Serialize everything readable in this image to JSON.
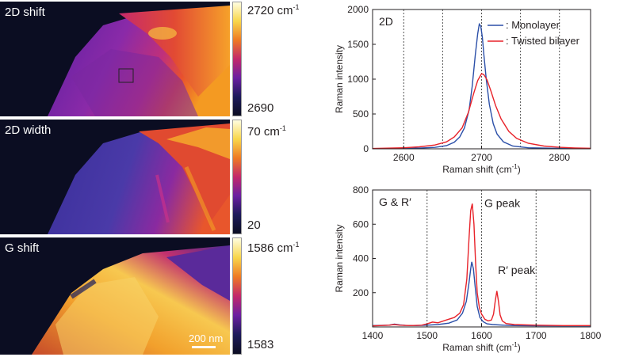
{
  "maps": [
    {
      "label": "2D shift",
      "cbar_max": "2720 cm",
      "cbar_max_sup": "-1",
      "cbar_min": "2690"
    },
    {
      "label": "2D width",
      "cbar_max": "70 cm",
      "cbar_max_sup": "-1",
      "cbar_min": "20"
    },
    {
      "label": "G shift",
      "cbar_max": "1586 cm",
      "cbar_max_sup": "-1",
      "cbar_min": "1583",
      "scalebar": "200 nm"
    }
  ],
  "colors": {
    "monolayer": "#2b4fa8",
    "twisted_bilayer": "#e8232a"
  },
  "chart_data": [
    {
      "type": "line",
      "panel_label": "2D",
      "xlabel": "Raman shift (cm",
      "xlabel_sup": "-1",
      "xlabel_close": ")",
      "ylabel": "Raman intensity",
      "xlim": [
        2560,
        2840
      ],
      "ylim": [
        0,
        2000
      ],
      "xticks": [
        2600,
        2700,
        2800
      ],
      "yticks": [
        0,
        500,
        1000,
        1500,
        2000
      ],
      "vlines": [
        2600,
        2650,
        2700,
        2750,
        2800
      ],
      "legend": [
        ": Monolayer",
        ": Twisted bilayer"
      ],
      "series": [
        {
          "name": "Monolayer",
          "x": [
            2560,
            2600,
            2620,
            2640,
            2655,
            2665,
            2672,
            2678,
            2684,
            2688,
            2692,
            2695,
            2697,
            2699,
            2701,
            2703,
            2706,
            2710,
            2715,
            2720,
            2728,
            2740,
            2760,
            2800,
            2840
          ],
          "y": [
            2,
            5,
            10,
            20,
            45,
            95,
            170,
            300,
            560,
            900,
            1350,
            1650,
            1790,
            1760,
            1600,
            1350,
            1000,
            640,
            360,
            210,
            100,
            40,
            15,
            6,
            3
          ]
        },
        {
          "name": "Twisted bilayer",
          "x": [
            2560,
            2600,
            2620,
            2640,
            2655,
            2665,
            2675,
            2683,
            2690,
            2695,
            2700,
            2703,
            2707,
            2712,
            2718,
            2725,
            2735,
            2745,
            2760,
            2780,
            2800,
            2820,
            2840
          ],
          "y": [
            5,
            15,
            28,
            55,
            100,
            170,
            300,
            520,
            800,
            980,
            1080,
            1065,
            990,
            830,
            620,
            430,
            250,
            150,
            80,
            40,
            22,
            12,
            8
          ]
        }
      ]
    },
    {
      "type": "line",
      "panel_label": "G & R′",
      "annotations": [
        "G peak",
        "R′ peak"
      ],
      "xlabel": "Raman shift (cm",
      "xlabel_sup": "-1",
      "xlabel_close": ")",
      "ylabel": "Raman intensity",
      "xlim": [
        1400,
        1800
      ],
      "ylim": [
        0,
        800
      ],
      "xticks": [
        1400,
        1500,
        1600,
        1700,
        1800
      ],
      "yticks": [
        200,
        400,
        600,
        800
      ],
      "vlines": [
        1500,
        1600,
        1700
      ],
      "series": [
        {
          "name": "Monolayer",
          "x": [
            1400,
            1430,
            1440,
            1450,
            1460,
            1480,
            1500,
            1520,
            1540,
            1555,
            1565,
            1572,
            1577,
            1580,
            1582,
            1585,
            1588,
            1592,
            1597,
            1603,
            1610,
            1620,
            1640,
            1660,
            1700,
            1750,
            1800
          ],
          "y": [
            8,
            10,
            16,
            12,
            9,
            8,
            10,
            14,
            22,
            40,
            80,
            150,
            260,
            340,
            380,
            340,
            240,
            120,
            55,
            30,
            18,
            14,
            10,
            8,
            7,
            6,
            6
          ]
        },
        {
          "name": "Twisted bilayer",
          "x": [
            1400,
            1430,
            1440,
            1450,
            1470,
            1490,
            1500,
            1510,
            1520,
            1535,
            1550,
            1560,
            1567,
            1573,
            1577,
            1580,
            1583,
            1586,
            1589,
            1592,
            1596,
            1600,
            1606,
            1612,
            1618,
            1622,
            1625,
            1628,
            1631,
            1634,
            1638,
            1645,
            1660,
            1700,
            1750,
            1800
          ],
          "y": [
            6,
            10,
            14,
            10,
            8,
            10,
            18,
            28,
            24,
            40,
            55,
            80,
            130,
            280,
            520,
            680,
            720,
            600,
            380,
            200,
            110,
            75,
            45,
            35,
            40,
            75,
            150,
            210,
            150,
            70,
            35,
            20,
            14,
            10,
            8,
            8
          ]
        }
      ]
    }
  ]
}
